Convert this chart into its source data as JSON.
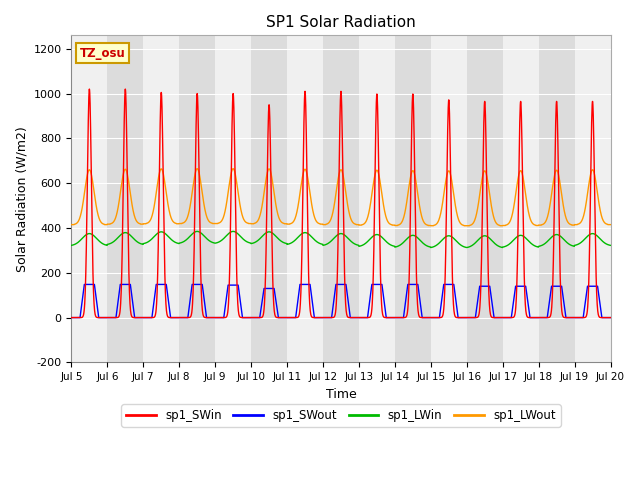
{
  "title": "SP1 Solar Radiation",
  "xlabel": "Time",
  "ylabel": "Solar Radiation (W/m2)",
  "ylim": [
    -200,
    1260
  ],
  "x_tick_labels": [
    "Jul 5",
    "Jul 6",
    "Jul 7",
    "Jul 8",
    "Jul 9",
    "Jul 10",
    "Jul 11",
    "Jul 12",
    "Jul 13",
    "Jul 14",
    "Jul 15",
    "Jul 16",
    "Jul 17",
    "Jul 18",
    "Jul 19",
    "Jul 20"
  ],
  "tz_label": "TZ_osu",
  "legend_entries": [
    "sp1_SWin",
    "sp1_SWout",
    "sp1_LWin",
    "sp1_LWout"
  ],
  "line_colors": [
    "#ff0000",
    "#0000ff",
    "#00bb00",
    "#ff9900"
  ],
  "bg_color": "#ffffff",
  "plot_bg_light": "#f0f0f0",
  "plot_bg_dark": "#dcdcdc",
  "grid_color": "#ffffff",
  "SWin_peaks": [
    1020,
    1020,
    1005,
    1000,
    1000,
    950,
    1010,
    1010,
    998,
    998,
    972,
    965,
    965,
    965,
    965
  ],
  "SWout_peaks": [
    148,
    148,
    148,
    148,
    145,
    130,
    148,
    148,
    148,
    148,
    148,
    140,
    140,
    140,
    140
  ],
  "LWin_base": 320,
  "LWin_amplitude": 55,
  "LWout_base": 415,
  "LWout_peak_add": 245
}
